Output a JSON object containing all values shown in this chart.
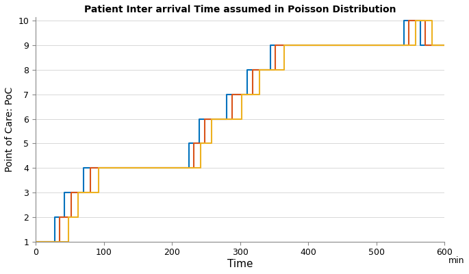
{
  "title": "Patient Inter arrival Time assumed in Poisson Distribution",
  "xlabel": "Time",
  "ylabel": "Point of Care: PoC",
  "xlim": [
    0,
    600
  ],
  "ylim": [
    1,
    10
  ],
  "xticks": [
    0,
    100,
    200,
    300,
    400,
    500,
    600
  ],
  "yticks": [
    1,
    2,
    3,
    4,
    5,
    6,
    7,
    8,
    9,
    10
  ],
  "xlabel_suffix": "min",
  "line_colors": [
    "#0072BD",
    "#D95319",
    "#EDB120"
  ],
  "line_width": 1.5,
  "blue": {
    "x": [
      0,
      28,
      28,
      42,
      42,
      70,
      70,
      95,
      95,
      225,
      225,
      240,
      240,
      280,
      280,
      310,
      310,
      345,
      345,
      390,
      390,
      540,
      540,
      565,
      565,
      600
    ],
    "y": [
      1,
      1,
      2,
      2,
      3,
      3,
      4,
      4,
      4,
      4,
      5,
      5,
      6,
      6,
      7,
      7,
      8,
      8,
      9,
      9,
      9,
      9,
      10,
      10,
      9,
      9
    ]
  },
  "red": {
    "x": [
      0,
      35,
      35,
      52,
      52,
      80,
      80,
      98,
      98,
      232,
      232,
      248,
      248,
      288,
      288,
      318,
      318,
      352,
      352,
      400,
      400,
      548,
      548,
      572,
      572,
      600
    ],
    "y": [
      1,
      1,
      2,
      2,
      3,
      3,
      4,
      4,
      4,
      4,
      5,
      5,
      6,
      6,
      7,
      7,
      8,
      8,
      9,
      9,
      9,
      9,
      10,
      10,
      9,
      9
    ]
  },
  "gold": {
    "x": [
      0,
      48,
      48,
      62,
      62,
      92,
      92,
      105,
      105,
      242,
      242,
      258,
      258,
      302,
      302,
      328,
      328,
      365,
      365,
      420,
      420,
      558,
      558,
      582,
      582,
      600
    ],
    "y": [
      1,
      1,
      2,
      2,
      3,
      3,
      4,
      4,
      4,
      4,
      5,
      5,
      6,
      6,
      7,
      7,
      8,
      8,
      9,
      9,
      9,
      9,
      10,
      10,
      9,
      9
    ]
  }
}
